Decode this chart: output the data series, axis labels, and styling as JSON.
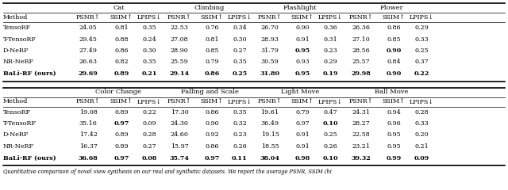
{
  "header_row1": [
    "Method",
    "PSNR↑",
    "SSIM↑",
    "LPIPS↓",
    "PSNR↑",
    "SSIM↑",
    "LPIPS↓",
    "PSNR↑",
    "SSIM↑",
    "LPIPS↓",
    "PSNR↑",
    "SSIM↑",
    "LPIPS↓"
  ],
  "data_row1": [
    [
      "TensoRF",
      "24.05",
      "0.81",
      "0.35",
      "22.53",
      "0.76",
      "0.34",
      "26.70",
      "0.90",
      "0.36",
      "26.36",
      "0.86",
      "0.29"
    ],
    [
      "T-TensoRF",
      "29.45",
      "0.88",
      "0.24",
      "27.08",
      "0.81",
      "0.30",
      "28.93",
      "0.91",
      "0.31",
      "27.10",
      "0.85",
      "0.33"
    ],
    [
      "D-NeRF",
      "27.49",
      "0.86",
      "0.30",
      "28.90",
      "0.85",
      "0.27",
      "31.79",
      "0.95",
      "0.23",
      "28.56",
      "0.90",
      "0.25"
    ],
    [
      "NR-NeRF",
      "26.63",
      "0.82",
      "0.35",
      "25.59",
      "0.79",
      "0.35",
      "30.59",
      "0.93",
      "0.29",
      "25.57",
      "0.84",
      "0.37"
    ],
    [
      "BaLi-RF (ours)",
      "29.69",
      "0.89",
      "0.21",
      "29.14",
      "0.86",
      "0.25",
      "31.80",
      "0.95",
      "0.19",
      "29.98",
      "0.90",
      "0.22"
    ]
  ],
  "bold_row1": [
    [
      false,
      false,
      false,
      false,
      false,
      false,
      false,
      false,
      false,
      false,
      false,
      false,
      false
    ],
    [
      false,
      false,
      false,
      false,
      false,
      false,
      false,
      false,
      false,
      false,
      false,
      false,
      false
    ],
    [
      false,
      false,
      false,
      false,
      false,
      false,
      false,
      false,
      true,
      false,
      false,
      true,
      false
    ],
    [
      false,
      false,
      false,
      false,
      false,
      false,
      false,
      false,
      false,
      false,
      false,
      false,
      false
    ],
    [
      true,
      true,
      true,
      true,
      true,
      true,
      true,
      true,
      true,
      true,
      true,
      true,
      true
    ]
  ],
  "header_row2": [
    "Method",
    "PSNR↑",
    "SSIM↑",
    "LPIPS↓",
    "PSNR↑",
    "SSIM↑",
    "LPIPS↓",
    "PSNR↑",
    "SSIM↑",
    "LPIPS↓",
    "PSNR↑",
    "SSIM↑",
    "LPIPS↓"
  ],
  "data_row2": [
    [
      "TensoRF",
      "19.08",
      "0.89",
      "0.22",
      "17.30",
      "0.86",
      "0.35",
      "19.61",
      "0.79",
      "0.47",
      "24.31",
      "0.94",
      "0.28"
    ],
    [
      "T-TensoRF",
      "35.16",
      "0.97",
      "0.09",
      "24.30",
      "0.90",
      "0.32",
      "36.49",
      "0.97",
      "0.10",
      "28.27",
      "0.96",
      "0.33"
    ],
    [
      "D-NeRF",
      "17.42",
      "0.89",
      "0.28",
      "24.60",
      "0.92",
      "0.23",
      "19.15",
      "0.91",
      "0.25",
      "22.58",
      "0.95",
      "0.20"
    ],
    [
      "NR-NeRF",
      "16.37",
      "0.89",
      "0.27",
      "15.97",
      "0.86",
      "0.26",
      "18.55",
      "0.91",
      "0.26",
      "23.21",
      "0.95",
      "0.21"
    ],
    [
      "BaLi-RF (ours)",
      "36.68",
      "0.97",
      "0.08",
      "35.74",
      "0.97",
      "0.11",
      "38.04",
      "0.98",
      "0.10",
      "39.32",
      "0.99",
      "0.09"
    ]
  ],
  "bold_row2": [
    [
      false,
      false,
      false,
      false,
      false,
      false,
      false,
      false,
      false,
      false,
      false,
      false,
      false
    ],
    [
      false,
      false,
      true,
      false,
      false,
      false,
      false,
      false,
      false,
      true,
      false,
      false,
      false
    ],
    [
      false,
      false,
      false,
      false,
      false,
      false,
      false,
      false,
      false,
      false,
      false,
      false,
      false
    ],
    [
      false,
      false,
      false,
      false,
      false,
      false,
      false,
      false,
      false,
      false,
      false,
      false,
      false
    ],
    [
      true,
      true,
      true,
      true,
      true,
      true,
      true,
      true,
      true,
      true,
      true,
      true,
      true
    ]
  ],
  "cat_titles1": [
    [
      "Cat",
      1,
      3
    ],
    [
      "Climbing",
      4,
      6
    ],
    [
      "Flashlight",
      7,
      9
    ],
    [
      "Flower",
      10,
      12
    ]
  ],
  "cat_titles2": [
    [
      "Color Change",
      1,
      3
    ],
    [
      "Falling and Scale",
      4,
      6
    ],
    [
      "Light Move",
      7,
      9
    ],
    [
      "Ball Move",
      10,
      12
    ]
  ],
  "caption": "Quantitative comparison of novel view synthesis on our real and synthetic datasets. We report the average PSNR, SSIM (hi",
  "bg_color": "#ffffff"
}
